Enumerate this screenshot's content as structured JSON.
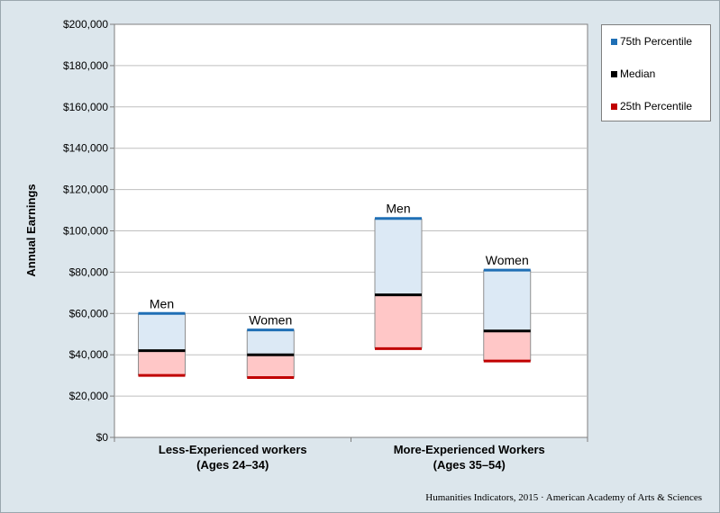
{
  "chart_data": {
    "type": "floating-bar",
    "ylabel": "Annual Earnings",
    "ylim": [
      0,
      200000
    ],
    "yticks": [
      0,
      20000,
      40000,
      60000,
      80000,
      100000,
      120000,
      140000,
      160000,
      180000,
      200000
    ],
    "ytick_labels": [
      "$0",
      "$20,000",
      "$40,000",
      "$60,000",
      "$80,000",
      "$100,000",
      "$120,000",
      "$140,000",
      "$160,000",
      "$180,000",
      "$200,000"
    ],
    "grid": true,
    "legend_position": "right",
    "categories": [
      {
        "line1": "Less-Experienced workers",
        "line2": "(Ages 24–34)"
      },
      {
        "line1": "More-Experienced Workers",
        "line2": "(Ages 35–54)"
      }
    ],
    "series": [
      {
        "name": "75th Percentile",
        "color": "#1f6fb5"
      },
      {
        "name": "Median",
        "color": "#000000"
      },
      {
        "name": "25th Percentile",
        "color": "#c00000"
      }
    ],
    "boxes": [
      {
        "category": 0,
        "label": "Men",
        "p25": 30000,
        "median": 42000,
        "p75": 60000
      },
      {
        "category": 0,
        "label": "Women",
        "p25": 29000,
        "median": 40000,
        "p75": 52000
      },
      {
        "category": 1,
        "label": "Men",
        "p25": 43000,
        "median": 69000,
        "p75": 106000
      },
      {
        "category": 1,
        "label": "Women",
        "p25": 37000,
        "median": 51500,
        "p75": 81000
      }
    ],
    "fill_upper": "#dce9f5",
    "fill_lower": "#ffc7c7"
  },
  "credit": "Humanities Indicators, 2015 · American Academy of Arts & Sciences"
}
